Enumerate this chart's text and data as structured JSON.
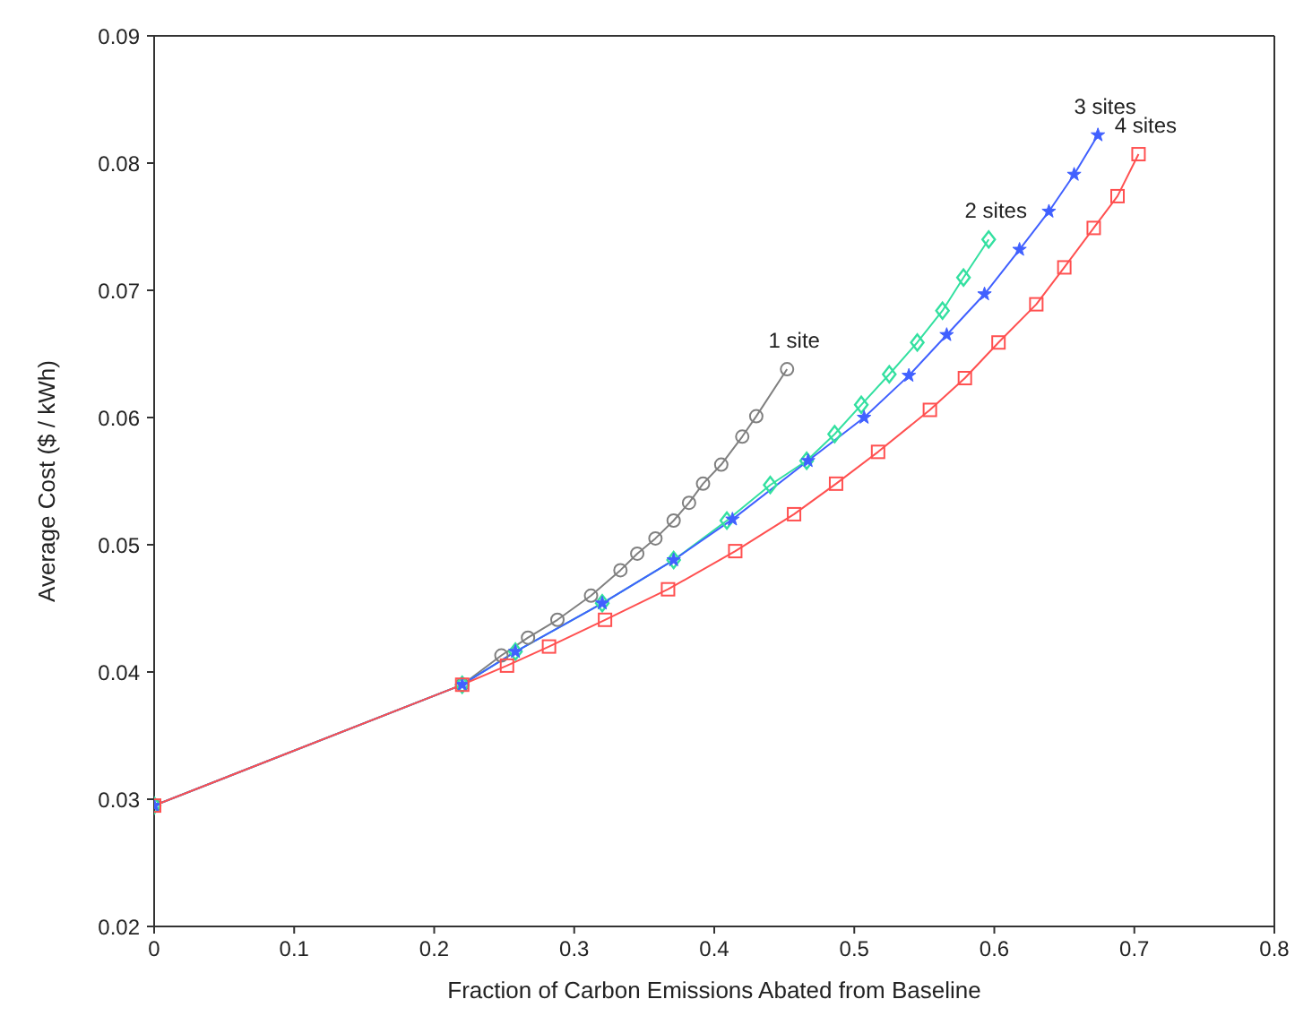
{
  "chart_data": {
    "type": "line",
    "xlabel": "Fraction of Carbon Emissions Abated from Baseline",
    "ylabel": "Average Cost ($ / kWh)",
    "xlim": [
      0,
      0.8
    ],
    "ylim": [
      0.02,
      0.09
    ],
    "xticks": [
      0,
      0.1,
      0.2,
      0.3,
      0.4,
      0.5,
      0.6,
      0.7,
      0.8
    ],
    "yticks": [
      0.02,
      0.03,
      0.04,
      0.05,
      0.06,
      0.07,
      0.08,
      0.09
    ],
    "legend": false,
    "series": [
      {
        "name": "1 site",
        "color": "#808080",
        "marker": "circle",
        "x": [
          0,
          0.22,
          0.248,
          0.267,
          0.288,
          0.312,
          0.333,
          0.345,
          0.358,
          0.371,
          0.382,
          0.392,
          0.405,
          0.42,
          0.43,
          0.452
        ],
        "values": [
          0.0295,
          0.039,
          0.0413,
          0.0427,
          0.0441,
          0.046,
          0.048,
          0.0493,
          0.0505,
          0.0519,
          0.0533,
          0.0548,
          0.0563,
          0.0585,
          0.0601,
          0.0638
        ]
      },
      {
        "name": "2 sites",
        "color": "#33e0a0",
        "marker": "diamond",
        "x": [
          0,
          0.22,
          0.258,
          0.32,
          0.371,
          0.409,
          0.44,
          0.466,
          0.486,
          0.505,
          0.525,
          0.545,
          0.563,
          0.578,
          0.596
        ],
        "values": [
          0.0295,
          0.039,
          0.0416,
          0.0454,
          0.0488,
          0.0519,
          0.0547,
          0.0566,
          0.0587,
          0.061,
          0.0634,
          0.0659,
          0.0684,
          0.071,
          0.074
        ]
      },
      {
        "name": "3 sites",
        "color": "#4060ff",
        "marker": "star",
        "x": [
          0,
          0.22,
          0.258,
          0.32,
          0.371,
          0.413,
          0.467,
          0.507,
          0.539,
          0.566,
          0.593,
          0.618,
          0.639,
          0.657,
          0.674
        ],
        "values": [
          0.0295,
          0.039,
          0.0416,
          0.0454,
          0.0488,
          0.052,
          0.0566,
          0.06,
          0.0633,
          0.0665,
          0.0697,
          0.0732,
          0.0762,
          0.0791,
          0.0822
        ]
      },
      {
        "name": "4 sites",
        "color": "#ff5050",
        "marker": "square",
        "x": [
          0,
          0.22,
          0.252,
          0.282,
          0.322,
          0.367,
          0.415,
          0.457,
          0.487,
          0.517,
          0.554,
          0.579,
          0.603,
          0.63,
          0.65,
          0.671,
          0.688,
          0.703
        ],
        "values": [
          0.0295,
          0.039,
          0.0405,
          0.042,
          0.0441,
          0.0465,
          0.0495,
          0.0524,
          0.0548,
          0.0573,
          0.0606,
          0.0631,
          0.0659,
          0.0689,
          0.0718,
          0.0749,
          0.0774,
          0.0807
        ]
      }
    ]
  }
}
